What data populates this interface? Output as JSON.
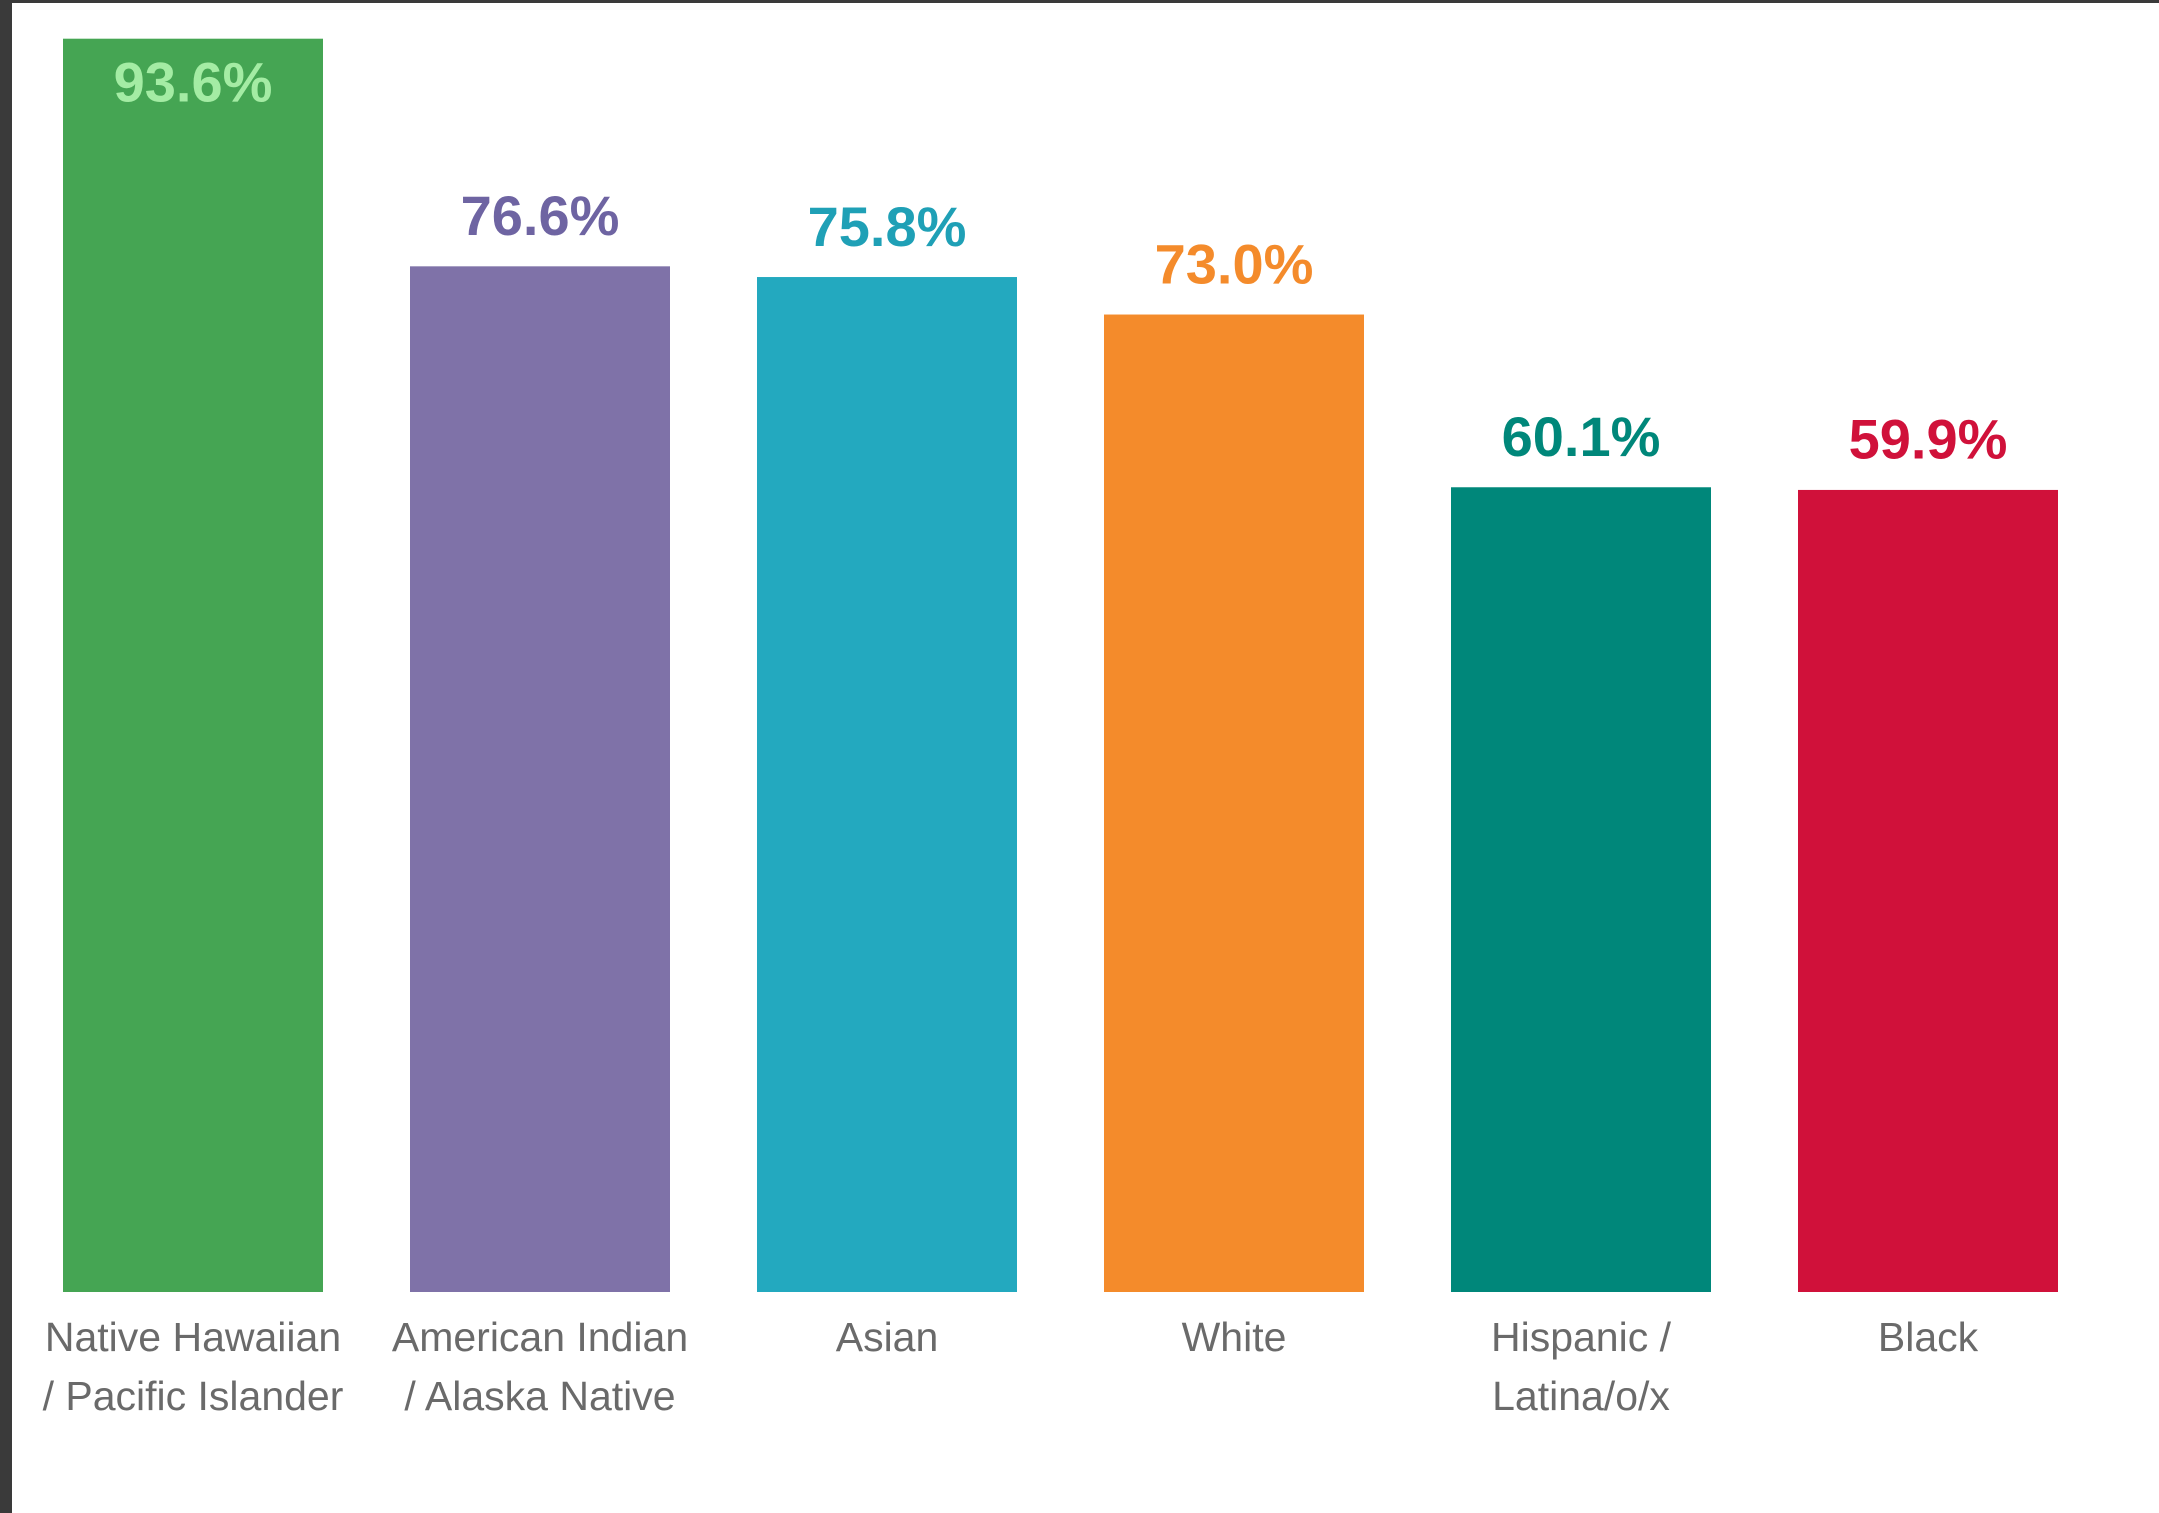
{
  "chart_data": {
    "type": "bar",
    "categories": [
      [
        "Native Hawaiian",
        "/ Pacific Islander"
      ],
      [
        "American Indian",
        "/ Alaska Native"
      ],
      [
        "Asian"
      ],
      [
        "White"
      ],
      [
        "Hispanic /",
        "Latina/o/x"
      ],
      [
        "Black"
      ]
    ],
    "values": [
      93.6,
      76.6,
      75.8,
      73.0,
      60.1,
      59.9
    ],
    "value_labels": [
      "93.6%",
      "76.6%",
      "75.8%",
      "73.0%",
      "60.1%",
      "59.9%"
    ],
    "colors": [
      "#45a553",
      "#7f72a8",
      "#23a9bf",
      "#f48b2b",
      "#00877a",
      "#d0113a"
    ],
    "value_label_colors": [
      "#a4eca4",
      "#6e64a2",
      "#1fa0b6",
      "#f48b2b",
      "#00877a",
      "#d0113a"
    ]
  }
}
